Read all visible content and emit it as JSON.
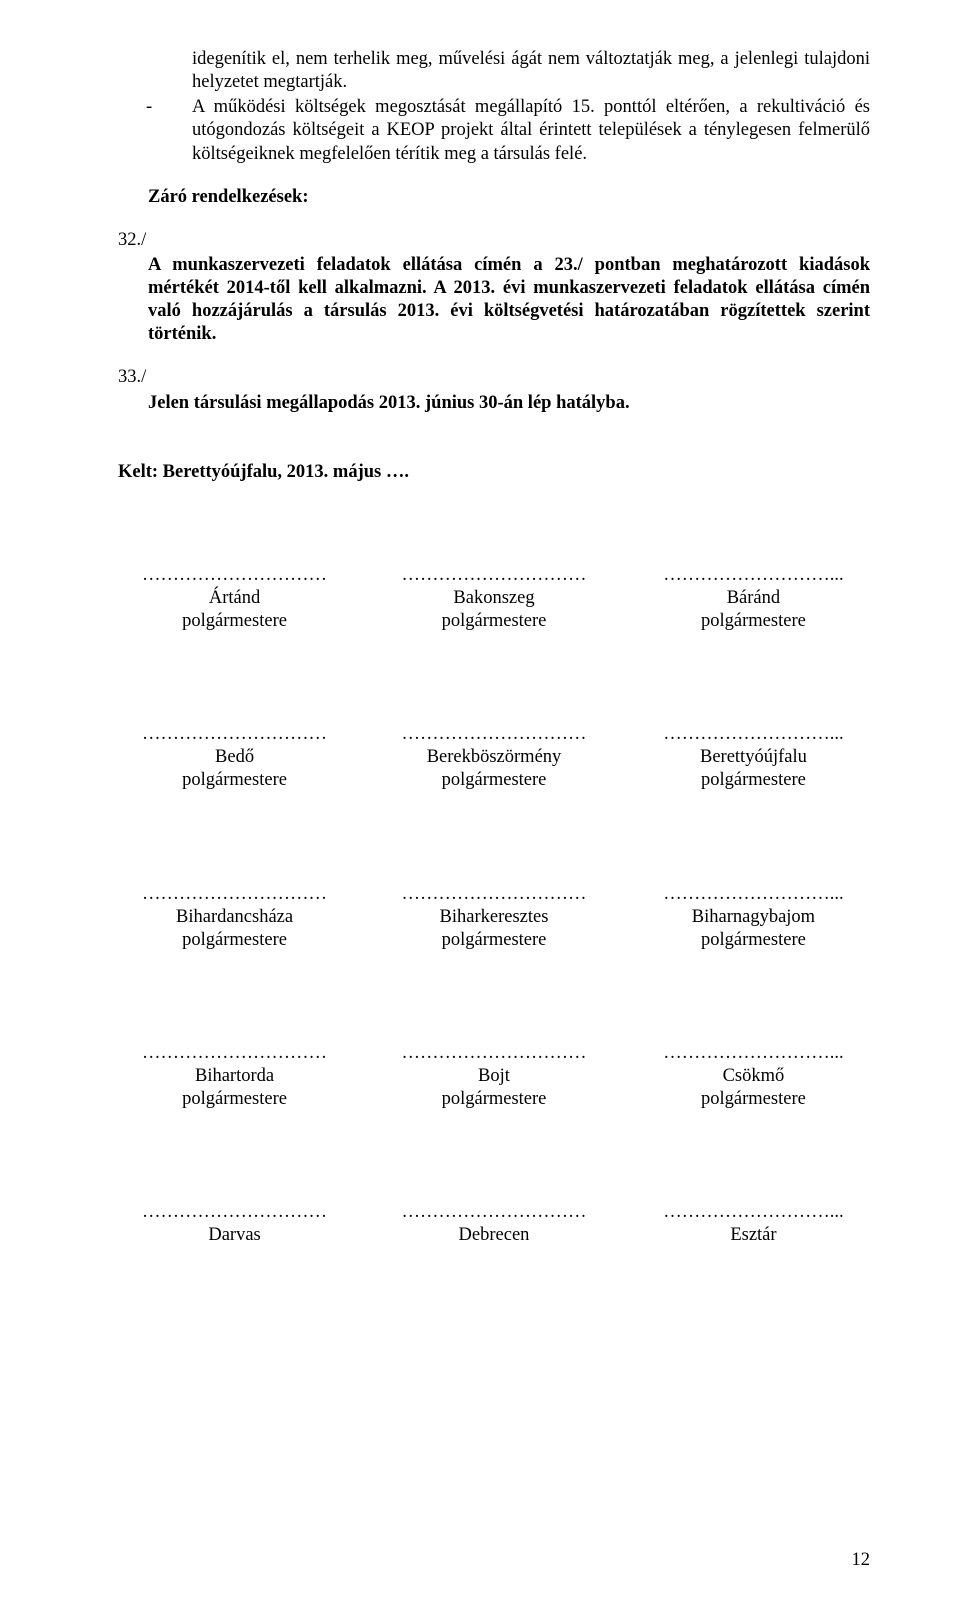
{
  "para1": "idegenítik el, nem terhelik meg, művelési ágát nem változtatják meg, a jelenlegi tulajdoni helyzetet megtartják.",
  "bullet": {
    "dash": "-",
    "text": "A működési költségek megosztását megállapító 15. ponttól eltérően, a rekultiváció és utógondozás költségeit a KEOP projekt által érintett települések a ténylegesen felmerülő költségeiknek megfelelően térítik meg a társulás felé."
  },
  "zaro": "Záró rendelkezések:",
  "s32": {
    "num": "32./",
    "body": "A munkaszervezeti feladatok ellátása címén a 23./ pontban meghatározott kiadások mértékét 2014-től kell alkalmazni. A 2013. évi munkaszervezeti feladatok ellátása címén való hozzájárulás a társulás 2013. évi költségvetési határozatában rögzítettek szerint történik."
  },
  "s33": {
    "num": "33./",
    "body": "Jelen társulási megállapodás 2013. június 30-án lép hatályba."
  },
  "kelt": "Kelt: Berettyóújfalu, 2013. május ….",
  "dots_a": "…………………………",
  "dots_b": "…………………………",
  "dots_c": "………………………...",
  "sig": {
    "r1": {
      "a": "Ártánd",
      "b": "Bakonszeg",
      "c": "Báránd"
    },
    "r2": {
      "a": "Bedő",
      "b": "Berekböszörmény",
      "c": "Berettyóújfalu"
    },
    "r3": {
      "a": "Bihardancsháza",
      "b": "Biharkeresztes",
      "c": "Biharnagybajom"
    },
    "r4": {
      "a": "Bihartorda",
      "b": "Bojt",
      "c": "Csökmő"
    },
    "r5": {
      "a": "Darvas",
      "b": "Debrecen",
      "c": "Esztár"
    }
  },
  "polg": "polgármestere",
  "pagenum": "12"
}
